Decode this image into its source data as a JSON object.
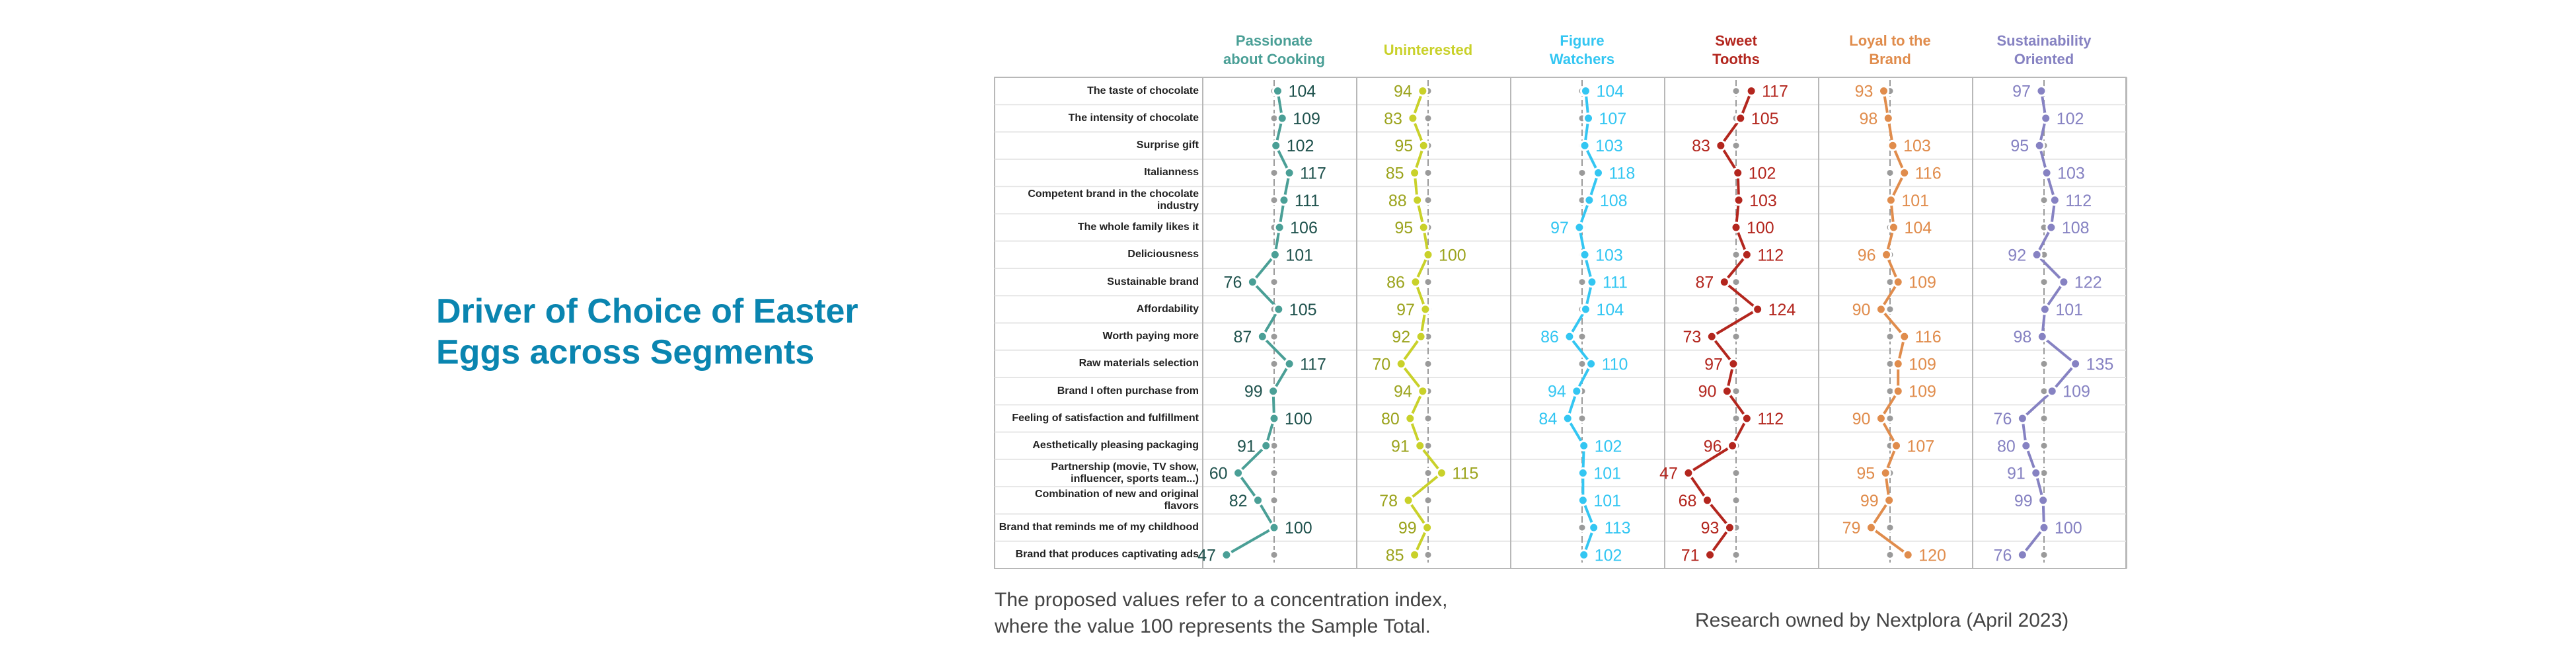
{
  "title": "Driver of Choice of Easter Eggs across Segments",
  "note_lines": [
    "The proposed values refer to a concentration index,",
    "where the value 100 represents the Sample Total."
  ],
  "credit": "Research owned by Nextplora (April 2023)",
  "chart_data": {
    "type": "line",
    "title": "Driver of Choice of Easter Eggs across Segments",
    "reference_value": 100,
    "categories": [
      "The taste of chocolate",
      "The intensity of chocolate",
      "Surprise gift",
      "Italianness",
      "Competent brand in the chocolate industry",
      "The whole family likes it",
      "Deliciousness",
      "Sustainable brand",
      "Affordability",
      "Worth paying more",
      "Raw materials selection",
      "Brand I often purchase from",
      "Feeling of satisfaction and fulfillment",
      "Aesthetically pleasing packaging",
      "Partnership (movie, TV show, influencer, sports team...)",
      "Combination of new and original flavors",
      "Brand that reminds me of my childhood",
      "Brand that produces captivating ads"
    ],
    "series": [
      {
        "name": "Passionate about Cooking",
        "color": "#4a9f96",
        "label_color": "#1f524d",
        "values": [
          104,
          109,
          102,
          117,
          111,
          106,
          101,
          76,
          105,
          87,
          117,
          99,
          100,
          91,
          60,
          82,
          100,
          47
        ]
      },
      {
        "name": "Uninterested",
        "color": "#c9d12a",
        "label_color": "#9ba31c",
        "values": [
          94,
          83,
          95,
          85,
          88,
          95,
          100,
          86,
          97,
          92,
          70,
          94,
          80,
          91,
          115,
          78,
          99,
          85
        ]
      },
      {
        "name": "Figure Watchers",
        "color": "#33c6f2",
        "label_color": "#33c6f2",
        "values": [
          104,
          107,
          103,
          118,
          108,
          97,
          103,
          111,
          104,
          86,
          110,
          94,
          84,
          102,
          101,
          101,
          113,
          102
        ]
      },
      {
        "name": "Sweet Tooths",
        "color": "#b3261e",
        "label_color": "#b3261e",
        "values": [
          117,
          105,
          83,
          102,
          103,
          100,
          112,
          87,
          124,
          73,
          97,
          90,
          112,
          96,
          47,
          68,
          93,
          71
        ]
      },
      {
        "name": "Loyal to the Brand",
        "color": "#e08c4c",
        "label_color": "#e08c4c",
        "values": [
          93,
          98,
          103,
          116,
          101,
          104,
          96,
          109,
          90,
          116,
          109,
          109,
          90,
          107,
          95,
          99,
          79,
          120
        ]
      },
      {
        "name": "Sustainability Oriented",
        "color": "#8682c2",
        "label_color": "#8682c2",
        "values": [
          97,
          102,
          95,
          103,
          112,
          108,
          92,
          122,
          101,
          98,
          135,
          109,
          76,
          80,
          91,
          99,
          100,
          76
        ]
      }
    ],
    "header_lines": [
      [
        "Passionate",
        "about Cooking"
      ],
      [
        "Uninterested"
      ],
      [
        "Figure",
        "Watchers"
      ],
      [
        "Sweet",
        "Tooths"
      ],
      [
        "Loyal to the",
        "Brand"
      ],
      [
        "Sustainability",
        "Oriented"
      ]
    ],
    "reference_color": "#9a9a9a",
    "grid": true
  }
}
